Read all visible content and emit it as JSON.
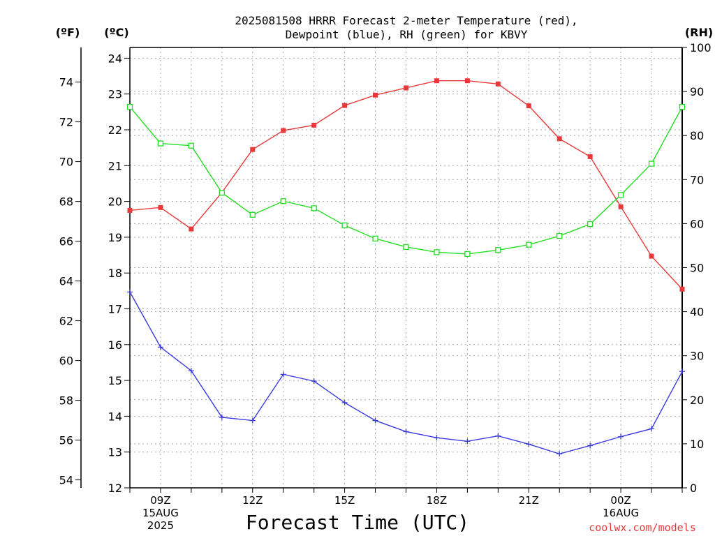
{
  "chart_data": {
    "type": "line",
    "title_line1": "2025081508 HRRR Forecast 2-meter Temperature (red),",
    "title_line2": "Dewpoint (blue), RH (green) for KBVY",
    "xlabel": "Forecast Time (UTC)",
    "credit": "coolwx.com/models",
    "left_unit_f": "(ºF)",
    "left_unit_c": "(ºC)",
    "right_unit": "(RH)",
    "x_hours": [
      8,
      9,
      10,
      11,
      12,
      13,
      14,
      15,
      16,
      17,
      18,
      19,
      20,
      21,
      22,
      23,
      24,
      25,
      26
    ],
    "x_tick_labels": [
      {
        "hour": 9,
        "lines": [
          "09Z",
          "15AUG",
          "2025"
        ]
      },
      {
        "hour": 12,
        "lines": [
          "12Z"
        ]
      },
      {
        "hour": 15,
        "lines": [
          "15Z"
        ]
      },
      {
        "hour": 18,
        "lines": [
          "18Z"
        ]
      },
      {
        "hour": 21,
        "lines": [
          "21Z"
        ]
      },
      {
        "hour": 24,
        "lines": [
          "00Z",
          "16AUG"
        ]
      }
    ],
    "ylim_c": [
      12,
      24.3
    ],
    "ylim_rh": [
      0,
      100
    ],
    "yticks_c": [
      12,
      13,
      14,
      15,
      16,
      17,
      18,
      19,
      20,
      21,
      22,
      23,
      24
    ],
    "yticks_f": [
      54,
      56,
      58,
      60,
      62,
      64,
      66,
      68,
      70,
      72,
      74
    ],
    "yticks_rh": [
      0,
      10,
      20,
      30,
      40,
      50,
      60,
      70,
      80,
      90,
      100
    ],
    "grid": true,
    "series": [
      {
        "name": "Temperature",
        "unit": "C",
        "color": "#e8393a",
        "marker": "filled-square",
        "values": [
          19.75,
          19.83,
          19.23,
          20.25,
          21.45,
          21.98,
          22.13,
          22.68,
          22.97,
          23.17,
          23.37,
          23.37,
          23.28,
          22.67,
          21.75,
          21.25,
          19.85,
          18.47,
          17.55
        ]
      },
      {
        "name": "Dewpoint",
        "unit": "C",
        "color": "#3a3ae0",
        "marker": "plus",
        "values": [
          17.47,
          15.93,
          15.27,
          13.97,
          13.88,
          15.17,
          14.98,
          14.38,
          13.88,
          13.57,
          13.4,
          13.3,
          13.45,
          13.22,
          12.95,
          13.18,
          13.43,
          13.65,
          15.25
        ]
      },
      {
        "name": "RH",
        "unit": "%",
        "color": "#22dd22",
        "marker": "open-square",
        "values": [
          86.5,
          78.2,
          77.7,
          67.0,
          62.0,
          65.1,
          63.5,
          59.6,
          56.6,
          54.7,
          53.5,
          53.1,
          54.0,
          55.2,
          57.2,
          59.9,
          66.5,
          73.6,
          86.5
        ]
      }
    ]
  }
}
